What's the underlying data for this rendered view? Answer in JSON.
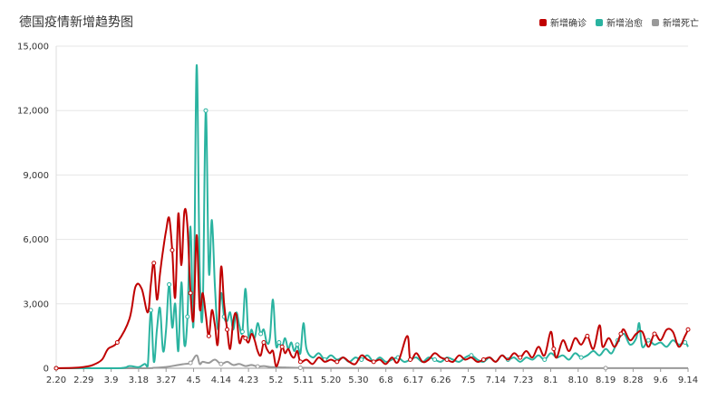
{
  "title": "德国疫情新增趋势图",
  "legend": [
    {
      "label": "新增确诊",
      "color": "#c00000"
    },
    {
      "label": "新增治愈",
      "color": "#2ab3a0"
    },
    {
      "label": "新增死亡",
      "color": "#999999"
    }
  ],
  "chart_data": {
    "type": "line",
    "title": "德国疫情新增趋势图",
    "xlabel": "",
    "ylabel": "",
    "ylim": [
      0,
      15000
    ],
    "yticks": [
      "0",
      "3,000",
      "6,000",
      "9,000",
      "12,000",
      "15,000"
    ],
    "grid": true,
    "legend_position": "top-right",
    "x_tick_labels": [
      "2.20",
      "2.29",
      "3.9",
      "3.18",
      "3.27",
      "4.5",
      "4.14",
      "4.23",
      "5.2",
      "5.11",
      "5.20",
      "5.30",
      "6.8",
      "6.17",
      "6.26",
      "7.5",
      "7.14",
      "7.23",
      "8.1",
      "8.10",
      "8.19",
      "8.28",
      "9.6",
      "9.14"
    ],
    "x_start": "2020-02-20",
    "series": [
      {
        "name": "新增确诊",
        "color": "#c00000",
        "points": [
          [
            0,
            0
          ],
          [
            6,
            20
          ],
          [
            9,
            60
          ],
          [
            12,
            150
          ],
          [
            15,
            400
          ],
          [
            17,
            900
          ],
          [
            20,
            1200
          ],
          [
            24,
            2300
          ],
          [
            26,
            3800
          ],
          [
            28,
            3700
          ],
          [
            30,
            2600
          ],
          [
            31,
            3900
          ],
          [
            32,
            4900
          ],
          [
            33,
            3200
          ],
          [
            34,
            4400
          ],
          [
            35,
            5500
          ],
          [
            36,
            6400
          ],
          [
            37,
            7000
          ],
          [
            38,
            5500
          ],
          [
            39,
            3300
          ],
          [
            40,
            7200
          ],
          [
            41,
            4800
          ],
          [
            42,
            7300
          ],
          [
            43,
            6600
          ],
          [
            44,
            3500
          ],
          [
            45,
            2300
          ],
          [
            46,
            6200
          ],
          [
            47,
            2800
          ],
          [
            48,
            3500
          ],
          [
            49,
            2500
          ],
          [
            50,
            1500
          ],
          [
            51,
            2700
          ],
          [
            52,
            2000
          ],
          [
            53,
            1200
          ],
          [
            54,
            4700
          ],
          [
            55,
            3000
          ],
          [
            56,
            1800
          ],
          [
            57,
            900
          ],
          [
            58,
            2200
          ],
          [
            59,
            2500
          ],
          [
            60,
            1200
          ],
          [
            61,
            1500
          ],
          [
            62,
            1400
          ],
          [
            63,
            1200
          ],
          [
            64,
            1600
          ],
          [
            65,
            1300
          ],
          [
            66,
            800
          ],
          [
            67,
            600
          ],
          [
            68,
            1200
          ],
          [
            69,
            900
          ],
          [
            70,
            700
          ],
          [
            71,
            800
          ],
          [
            72,
            100
          ],
          [
            73,
            400
          ],
          [
            74,
            1000
          ],
          [
            75,
            700
          ],
          [
            76,
            900
          ],
          [
            77,
            600
          ],
          [
            78,
            500
          ],
          [
            79,
            800
          ],
          [
            80,
            300
          ],
          [
            82,
            400
          ],
          [
            84,
            200
          ],
          [
            86,
            500
          ],
          [
            88,
            300
          ],
          [
            90,
            400
          ],
          [
            92,
            300
          ],
          [
            94,
            500
          ],
          [
            96,
            300
          ],
          [
            98,
            200
          ],
          [
            100,
            600
          ],
          [
            102,
            400
          ],
          [
            104,
            300
          ],
          [
            106,
            400
          ],
          [
            108,
            200
          ],
          [
            110,
            500
          ],
          [
            112,
            300
          ],
          [
            115,
            1500
          ],
          [
            116,
            400
          ],
          [
            118,
            700
          ],
          [
            120,
            300
          ],
          [
            122,
            400
          ],
          [
            124,
            700
          ],
          [
            126,
            500
          ],
          [
            128,
            400
          ],
          [
            130,
            300
          ],
          [
            132,
            600
          ],
          [
            134,
            400
          ],
          [
            136,
            500
          ],
          [
            138,
            300
          ],
          [
            140,
            400
          ],
          [
            142,
            500
          ],
          [
            144,
            300
          ],
          [
            146,
            600
          ],
          [
            148,
            400
          ],
          [
            150,
            700
          ],
          [
            152,
            500
          ],
          [
            154,
            800
          ],
          [
            156,
            500
          ],
          [
            158,
            1000
          ],
          [
            160,
            600
          ],
          [
            162,
            1700
          ],
          [
            163,
            900
          ],
          [
            164,
            500
          ],
          [
            166,
            1300
          ],
          [
            168,
            800
          ],
          [
            170,
            1400
          ],
          [
            172,
            1100
          ],
          [
            174,
            1500
          ],
          [
            176,
            900
          ],
          [
            178,
            2000
          ],
          [
            179,
            1000
          ],
          [
            181,
            1400
          ],
          [
            183,
            1000
          ],
          [
            185,
            1600
          ],
          [
            186,
            1800
          ],
          [
            188,
            1300
          ],
          [
            190,
            1600
          ],
          [
            192,
            1700
          ],
          [
            194,
            1000
          ],
          [
            196,
            1600
          ],
          [
            198,
            1300
          ],
          [
            200,
            1800
          ],
          [
            202,
            1700
          ],
          [
            204,
            1000
          ],
          [
            206,
            1500
          ],
          [
            207,
            1800
          ]
        ]
      },
      {
        "name": "新增治愈",
        "color": "#2ab3a0",
        "points": [
          [
            0,
            0
          ],
          [
            20,
            0
          ],
          [
            24,
            100
          ],
          [
            27,
            50
          ],
          [
            29,
            200
          ],
          [
            30,
            100
          ],
          [
            31,
            2700
          ],
          [
            32,
            300
          ],
          [
            33,
            1800
          ],
          [
            34,
            2800
          ],
          [
            35,
            800
          ],
          [
            36,
            1800
          ],
          [
            37,
            3900
          ],
          [
            38,
            1900
          ],
          [
            39,
            3000
          ],
          [
            40,
            800
          ],
          [
            41,
            4000
          ],
          [
            42,
            1100
          ],
          [
            43,
            2400
          ],
          [
            44,
            6600
          ],
          [
            45,
            2100
          ],
          [
            46,
            14100
          ],
          [
            47,
            4600
          ],
          [
            48,
            2700
          ],
          [
            49,
            12000
          ],
          [
            50,
            4500
          ],
          [
            51,
            6900
          ],
          [
            52,
            3800
          ],
          [
            53,
            1800
          ],
          [
            54,
            3500
          ],
          [
            55,
            2400
          ],
          [
            56,
            2200
          ],
          [
            57,
            2600
          ],
          [
            58,
            1800
          ],
          [
            59,
            2600
          ],
          [
            60,
            2000
          ],
          [
            61,
            1700
          ],
          [
            62,
            3700
          ],
          [
            63,
            1500
          ],
          [
            64,
            1800
          ],
          [
            65,
            1400
          ],
          [
            66,
            2100
          ],
          [
            67,
            1600
          ],
          [
            68,
            1800
          ],
          [
            69,
            1200
          ],
          [
            70,
            1400
          ],
          [
            71,
            3200
          ],
          [
            72,
            1100
          ],
          [
            73,
            1200
          ],
          [
            74,
            1000
          ],
          [
            75,
            1400
          ],
          [
            76,
            900
          ],
          [
            77,
            1200
          ],
          [
            78,
            800
          ],
          [
            79,
            1100
          ],
          [
            80,
            700
          ],
          [
            81,
            2100
          ],
          [
            82,
            900
          ],
          [
            84,
            500
          ],
          [
            86,
            700
          ],
          [
            88,
            400
          ],
          [
            90,
            600
          ],
          [
            92,
            400
          ],
          [
            94,
            500
          ],
          [
            96,
            300
          ],
          [
            98,
            500
          ],
          [
            100,
            400
          ],
          [
            102,
            600
          ],
          [
            104,
            300
          ],
          [
            106,
            500
          ],
          [
            108,
            300
          ],
          [
            110,
            400
          ],
          [
            112,
            500
          ],
          [
            114,
            300
          ],
          [
            116,
            400
          ],
          [
            118,
            500
          ],
          [
            120,
            300
          ],
          [
            122,
            500
          ],
          [
            124,
            400
          ],
          [
            126,
            300
          ],
          [
            128,
            500
          ],
          [
            130,
            400
          ],
          [
            132,
            300
          ],
          [
            134,
            500
          ],
          [
            136,
            600
          ],
          [
            138,
            400
          ],
          [
            140,
            300
          ],
          [
            142,
            500
          ],
          [
            144,
            300
          ],
          [
            146,
            600
          ],
          [
            148,
            400
          ],
          [
            150,
            500
          ],
          [
            152,
            300
          ],
          [
            154,
            500
          ],
          [
            156,
            400
          ],
          [
            158,
            600
          ],
          [
            160,
            400
          ],
          [
            162,
            700
          ],
          [
            164,
            500
          ],
          [
            166,
            600
          ],
          [
            168,
            400
          ],
          [
            170,
            700
          ],
          [
            172,
            500
          ],
          [
            174,
            600
          ],
          [
            176,
            800
          ],
          [
            178,
            600
          ],
          [
            180,
            900
          ],
          [
            182,
            700
          ],
          [
            184,
            1300
          ],
          [
            186,
            1600
          ],
          [
            188,
            1100
          ],
          [
            190,
            1400
          ],
          [
            191,
            2100
          ],
          [
            192,
            1000
          ],
          [
            194,
            1300
          ],
          [
            196,
            1100
          ],
          [
            198,
            1200
          ],
          [
            200,
            1000
          ],
          [
            202,
            1300
          ],
          [
            204,
            1100
          ],
          [
            206,
            1200
          ],
          [
            207,
            1000
          ]
        ]
      },
      {
        "name": "新增死亡",
        "color": "#999999",
        "points": [
          [
            0,
            0
          ],
          [
            28,
            0
          ],
          [
            32,
            20
          ],
          [
            36,
            60
          ],
          [
            40,
            150
          ],
          [
            42,
            200
          ],
          [
            44,
            250
          ],
          [
            46,
            600
          ],
          [
            47,
            200
          ],
          [
            48,
            300
          ],
          [
            50,
            250
          ],
          [
            52,
            400
          ],
          [
            54,
            200
          ],
          [
            56,
            300
          ],
          [
            58,
            150
          ],
          [
            60,
            200
          ],
          [
            62,
            100
          ],
          [
            64,
            150
          ],
          [
            66,
            80
          ],
          [
            68,
            100
          ],
          [
            70,
            60
          ],
          [
            72,
            50
          ],
          [
            74,
            40
          ],
          [
            76,
            30
          ],
          [
            80,
            20
          ],
          [
            90,
            10
          ],
          [
            100,
            10
          ],
          [
            120,
            5
          ],
          [
            140,
            5
          ],
          [
            160,
            5
          ],
          [
            180,
            5
          ],
          [
            200,
            5
          ],
          [
            207,
            5
          ]
        ]
      }
    ]
  }
}
